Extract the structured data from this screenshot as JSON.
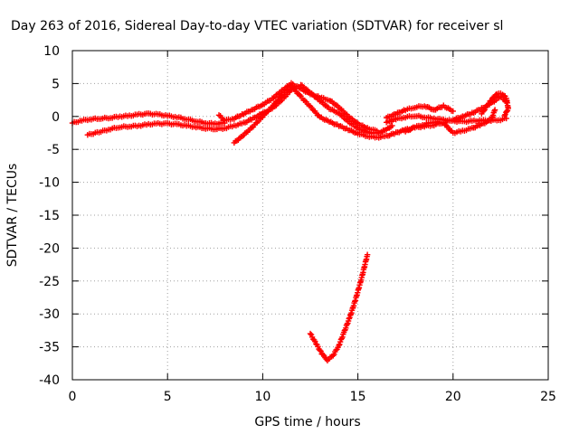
{
  "chart_data": {
    "type": "scatter",
    "title": "Day 263 of 2016, Sidereal Day-to-day VTEC variation (SDTVAR) for receiver sl",
    "xlabel": "GPS time / hours",
    "ylabel": "SDTVAR / TECUs",
    "xlim": [
      0,
      25
    ],
    "ylim": [
      -40,
      10
    ],
    "x_ticks": [
      "0",
      "5",
      "10",
      "15",
      "20",
      "25"
    ],
    "y_ticks": [
      "10",
      "5",
      "0",
      "-5",
      "-10",
      "-15",
      "-20",
      "-25",
      "-30",
      "-35",
      "-40"
    ],
    "x_tick_values": [
      0,
      5,
      10,
      15,
      20,
      25
    ],
    "y_tick_values": [
      10,
      5,
      0,
      -5,
      -10,
      -15,
      -20,
      -25,
      -30,
      -35,
      -40
    ],
    "grid": true,
    "marker": "plus",
    "color": "#ff0000",
    "series": [
      {
        "traces": [
          [
            [
              0.0,
              -1.0
            ],
            [
              0.5,
              -0.6
            ],
            [
              1.0,
              -0.4
            ],
            [
              1.5,
              -0.3
            ],
            [
              2.0,
              -0.2
            ],
            [
              2.5,
              0.0
            ],
            [
              3.0,
              0.1
            ],
            [
              3.5,
              0.3
            ],
            [
              4.0,
              0.4
            ],
            [
              4.5,
              0.3
            ],
            [
              5.0,
              0.1
            ],
            [
              5.5,
              -0.1
            ],
            [
              6.0,
              -0.4
            ],
            [
              6.5,
              -0.7
            ],
            [
              7.0,
              -1.0
            ],
            [
              7.5,
              -1.1
            ],
            [
              8.0,
              -1.0
            ]
          ],
          [
            [
              0.8,
              -2.8
            ],
            [
              1.5,
              -2.3
            ],
            [
              2.0,
              -1.9
            ],
            [
              2.5,
              -1.6
            ],
            [
              3.0,
              -1.5
            ],
            [
              3.5,
              -1.4
            ],
            [
              4.0,
              -1.2
            ],
            [
              4.5,
              -1.1
            ],
            [
              5.0,
              -1.1
            ],
            [
              5.5,
              -1.2
            ],
            [
              6.0,
              -1.4
            ],
            [
              6.5,
              -1.6
            ],
            [
              7.0,
              -1.8
            ],
            [
              7.5,
              -1.9
            ],
            [
              8.0,
              -1.8
            ],
            [
              8.5,
              -1.4
            ],
            [
              9.0,
              -1.0
            ],
            [
              9.5,
              -0.3
            ],
            [
              10.0,
              0.5
            ],
            [
              10.5,
              1.2
            ],
            [
              11.0,
              2.5
            ],
            [
              11.5,
              4.0
            ]
          ],
          [
            [
              7.7,
              0.2
            ],
            [
              8.0,
              -0.6
            ],
            [
              8.5,
              -0.3
            ],
            [
              9.0,
              0.4
            ],
            [
              9.5,
              1.1
            ],
            [
              10.0,
              1.8
            ],
            [
              10.5,
              2.7
            ],
            [
              11.0,
              3.9
            ],
            [
              11.5,
              5.0
            ],
            [
              12.0,
              4.2
            ],
            [
              12.5,
              3.4
            ],
            [
              13.0,
              2.9
            ],
            [
              13.5,
              2.5
            ],
            [
              14.0,
              1.4
            ],
            [
              14.5,
              0.0
            ],
            [
              15.0,
              -1.1
            ],
            [
              15.5,
              -1.8
            ],
            [
              16.0,
              -2.2
            ]
          ],
          [
            [
              8.5,
              -4.0
            ],
            [
              9.0,
              -2.8
            ],
            [
              9.5,
              -1.5
            ],
            [
              10.0,
              0.0
            ],
            [
              10.5,
              1.5
            ],
            [
              11.0,
              3.2
            ],
            [
              11.5,
              4.6
            ],
            [
              12.0,
              3.0
            ],
            [
              12.5,
              1.5
            ],
            [
              13.0,
              -0.1
            ],
            [
              13.5,
              -0.8
            ],
            [
              14.0,
              -1.4
            ],
            [
              14.5,
              -2.0
            ],
            [
              15.0,
              -2.6
            ],
            [
              15.5,
              -3.0
            ],
            [
              16.0,
              -3.2
            ],
            [
              16.5,
              -3.0
            ],
            [
              17.0,
              -2.5
            ],
            [
              17.5,
              -2.0
            ],
            [
              18.0,
              -1.7
            ],
            [
              18.5,
              -1.5
            ],
            [
              19.0,
              -1.3
            ],
            [
              19.5,
              -0.9
            ],
            [
              20.0,
              -0.5
            ],
            [
              20.5,
              0.0
            ],
            [
              21.0,
              0.5
            ],
            [
              21.5,
              1.2
            ],
            [
              22.0,
              2.0
            ],
            [
              22.5,
              3.0
            ],
            [
              22.8,
              2.2
            ]
          ],
          [
            [
              12.0,
              4.8
            ],
            [
              12.5,
              3.6
            ],
            [
              13.0,
              2.4
            ],
            [
              13.5,
              1.2
            ],
            [
              14.0,
              0.5
            ],
            [
              14.5,
              -0.8
            ],
            [
              15.0,
              -1.8
            ],
            [
              15.5,
              -2.4
            ],
            [
              16.0,
              -2.6
            ],
            [
              16.5,
              -2.0
            ],
            [
              16.8,
              -1.4
            ]
          ],
          [
            [
              16.5,
              -0.2
            ],
            [
              17.0,
              0.4
            ],
            [
              17.5,
              1.0
            ],
            [
              18.0,
              1.4
            ],
            [
              18.5,
              1.6
            ],
            [
              19.0,
              1.0
            ],
            [
              19.5,
              1.6
            ],
            [
              20.0,
              0.8
            ]
          ],
          [
            [
              16.5,
              -0.9
            ],
            [
              17.0,
              -0.4
            ],
            [
              17.5,
              -0.1
            ],
            [
              18.0,
              0.1
            ],
            [
              18.5,
              -0.1
            ],
            [
              19.0,
              -0.3
            ],
            [
              19.5,
              -0.5
            ],
            [
              20.0,
              -0.7
            ],
            [
              20.5,
              -0.8
            ],
            [
              21.0,
              -0.7
            ],
            [
              21.5,
              -0.6
            ],
            [
              22.0,
              -0.6
            ],
            [
              22.5,
              -0.5
            ],
            [
              22.8,
              -0.3
            ]
          ],
          [
            [
              17.5,
              -2.3
            ],
            [
              18.0,
              -1.6
            ],
            [
              18.5,
              -1.2
            ],
            [
              19.0,
              -0.8
            ],
            [
              19.5,
              -1.0
            ],
            [
              20.0,
              -2.5
            ],
            [
              20.5,
              -2.2
            ],
            [
              21.0,
              -1.8
            ],
            [
              21.5,
              -1.2
            ],
            [
              22.0,
              -0.5
            ],
            [
              22.2,
              1.0
            ]
          ],
          [
            [
              21.5,
              0.4
            ],
            [
              22.0,
              2.5
            ],
            [
              22.3,
              3.5
            ],
            [
              22.6,
              3.4
            ],
            [
              22.8,
              2.8
            ],
            [
              22.9,
              1.2
            ],
            [
              22.7,
              0.1
            ]
          ],
          [
            [
              12.5,
              -33.0
            ],
            [
              12.8,
              -34.5
            ],
            [
              13.1,
              -36.0
            ],
            [
              13.4,
              -37.0
            ],
            [
              13.7,
              -36.3
            ],
            [
              14.0,
              -34.8
            ],
            [
              14.3,
              -32.6
            ],
            [
              14.6,
              -30.3
            ],
            [
              14.9,
              -27.6
            ],
            [
              15.2,
              -24.5
            ],
            [
              15.5,
              -21.0
            ]
          ]
        ]
      }
    ]
  }
}
